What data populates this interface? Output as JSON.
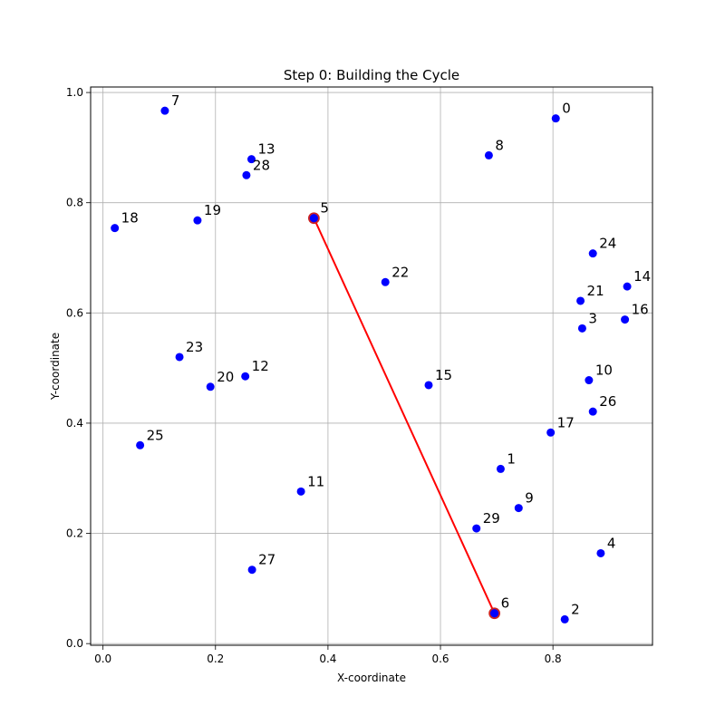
{
  "chart_data": {
    "type": "scatter",
    "title": "Step 0: Building the Cycle",
    "xlabel": "X-coordinate",
    "ylabel": "Y-coordinate",
    "xlim": [
      -0.022,
      0.977
    ],
    "ylim": [
      -0.003,
      1.01
    ],
    "xticks": [
      0.0,
      0.2,
      0.4,
      0.6,
      0.8
    ],
    "yticks": [
      0.0,
      0.2,
      0.4,
      0.6,
      0.8,
      1.0
    ],
    "xtick_labels": [
      "0.0",
      "0.2",
      "0.4",
      "0.6",
      "0.8"
    ],
    "ytick_labels": [
      "0.0",
      "0.2",
      "0.4",
      "0.6",
      "0.8",
      "1.0"
    ],
    "grid": true,
    "point_color": "#0000ff",
    "path_color": "#ff0000",
    "highlight_edge_color": "#cc2222",
    "points": [
      {
        "label": "0",
        "x": 0.805,
        "y": 0.953
      },
      {
        "label": "1",
        "x": 0.707,
        "y": 0.317
      },
      {
        "label": "2",
        "x": 0.821,
        "y": 0.044
      },
      {
        "label": "3",
        "x": 0.852,
        "y": 0.572
      },
      {
        "label": "4",
        "x": 0.885,
        "y": 0.164
      },
      {
        "label": "5",
        "x": 0.375,
        "y": 0.772
      },
      {
        "label": "6",
        "x": 0.696,
        "y": 0.055
      },
      {
        "label": "7",
        "x": 0.11,
        "y": 0.967
      },
      {
        "label": "8",
        "x": 0.686,
        "y": 0.886
      },
      {
        "label": "9",
        "x": 0.739,
        "y": 0.246
      },
      {
        "label": "10",
        "x": 0.864,
        "y": 0.478
      },
      {
        "label": "11",
        "x": 0.352,
        "y": 0.276
      },
      {
        "label": "12",
        "x": 0.253,
        "y": 0.485
      },
      {
        "label": "13",
        "x": 0.264,
        "y": 0.879
      },
      {
        "label": "14",
        "x": 0.932,
        "y": 0.648
      },
      {
        "label": "15",
        "x": 0.579,
        "y": 0.469
      },
      {
        "label": "16",
        "x": 0.928,
        "y": 0.588
      },
      {
        "label": "17",
        "x": 0.796,
        "y": 0.383
      },
      {
        "label": "18",
        "x": 0.021,
        "y": 0.754
      },
      {
        "label": "19",
        "x": 0.168,
        "y": 0.768
      },
      {
        "label": "20",
        "x": 0.191,
        "y": 0.466
      },
      {
        "label": "21",
        "x": 0.849,
        "y": 0.622
      },
      {
        "label": "22",
        "x": 0.502,
        "y": 0.656
      },
      {
        "label": "23",
        "x": 0.136,
        "y": 0.52
      },
      {
        "label": "24",
        "x": 0.871,
        "y": 0.708
      },
      {
        "label": "25",
        "x": 0.066,
        "y": 0.36
      },
      {
        "label": "26",
        "x": 0.871,
        "y": 0.421
      },
      {
        "label": "27",
        "x": 0.265,
        "y": 0.134
      },
      {
        "label": "28",
        "x": 0.255,
        "y": 0.85
      },
      {
        "label": "29",
        "x": 0.664,
        "y": 0.209
      }
    ],
    "path": [
      "5",
      "6"
    ],
    "highlighted": [
      "5",
      "6"
    ]
  }
}
